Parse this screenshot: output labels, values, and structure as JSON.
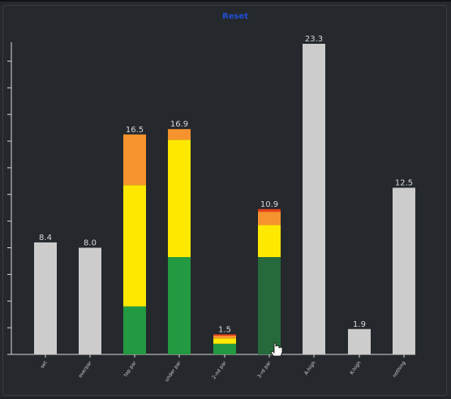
{
  "header": {
    "reset_label": "Reset"
  },
  "colors": {
    "background": "#25292d",
    "axis": "#d8d8d8",
    "gray_bar": "#cccccc",
    "green": "#239a41",
    "yellow": "#ffe800",
    "orange": "#f7932e",
    "red": "#e8401c",
    "highlight_green": "#26693a",
    "reset_blue": "#1f4fd8"
  },
  "chart_data": {
    "type": "bar",
    "stacked": true,
    "title": "",
    "xlabel": "",
    "ylabel": "",
    "ylim": [
      0,
      23.3
    ],
    "grid": false,
    "categories": [
      "set",
      "overpar",
      "top par",
      "under par",
      "2-nd par",
      "3-rd par",
      "A-high",
      "K-high",
      "nothing"
    ],
    "totals": [
      8.4,
      8.0,
      16.5,
      16.9,
      1.5,
      10.9,
      23.3,
      1.9,
      12.5
    ],
    "total_labels": [
      "8.4",
      "8.0",
      "16.5",
      "16.9",
      "1.5",
      "10.9",
      "23.3",
      "1.9",
      "12.5"
    ],
    "series": [
      {
        "color": "#cccccc",
        "values": [
          8.4,
          8.0,
          0,
          0,
          0,
          0,
          23.3,
          1.9,
          12.5
        ]
      },
      {
        "color": "#239a41",
        "values": [
          0,
          0,
          3.6,
          7.3,
          0.8,
          7.3,
          0,
          0,
          0
        ]
      },
      {
        "color": "#ffe800",
        "values": [
          0,
          0,
          9.1,
          8.8,
          0.4,
          2.4,
          0,
          0,
          0
        ]
      },
      {
        "color": "#f7932e",
        "values": [
          0,
          0,
          3.8,
          0.8,
          0.2,
          1.0,
          0,
          0,
          0
        ]
      },
      {
        "color": "#e8401c",
        "values": [
          0,
          0,
          0,
          0,
          0.1,
          0.2,
          0,
          0,
          0
        ]
      }
    ],
    "highlighted_category": "3-rd par"
  }
}
